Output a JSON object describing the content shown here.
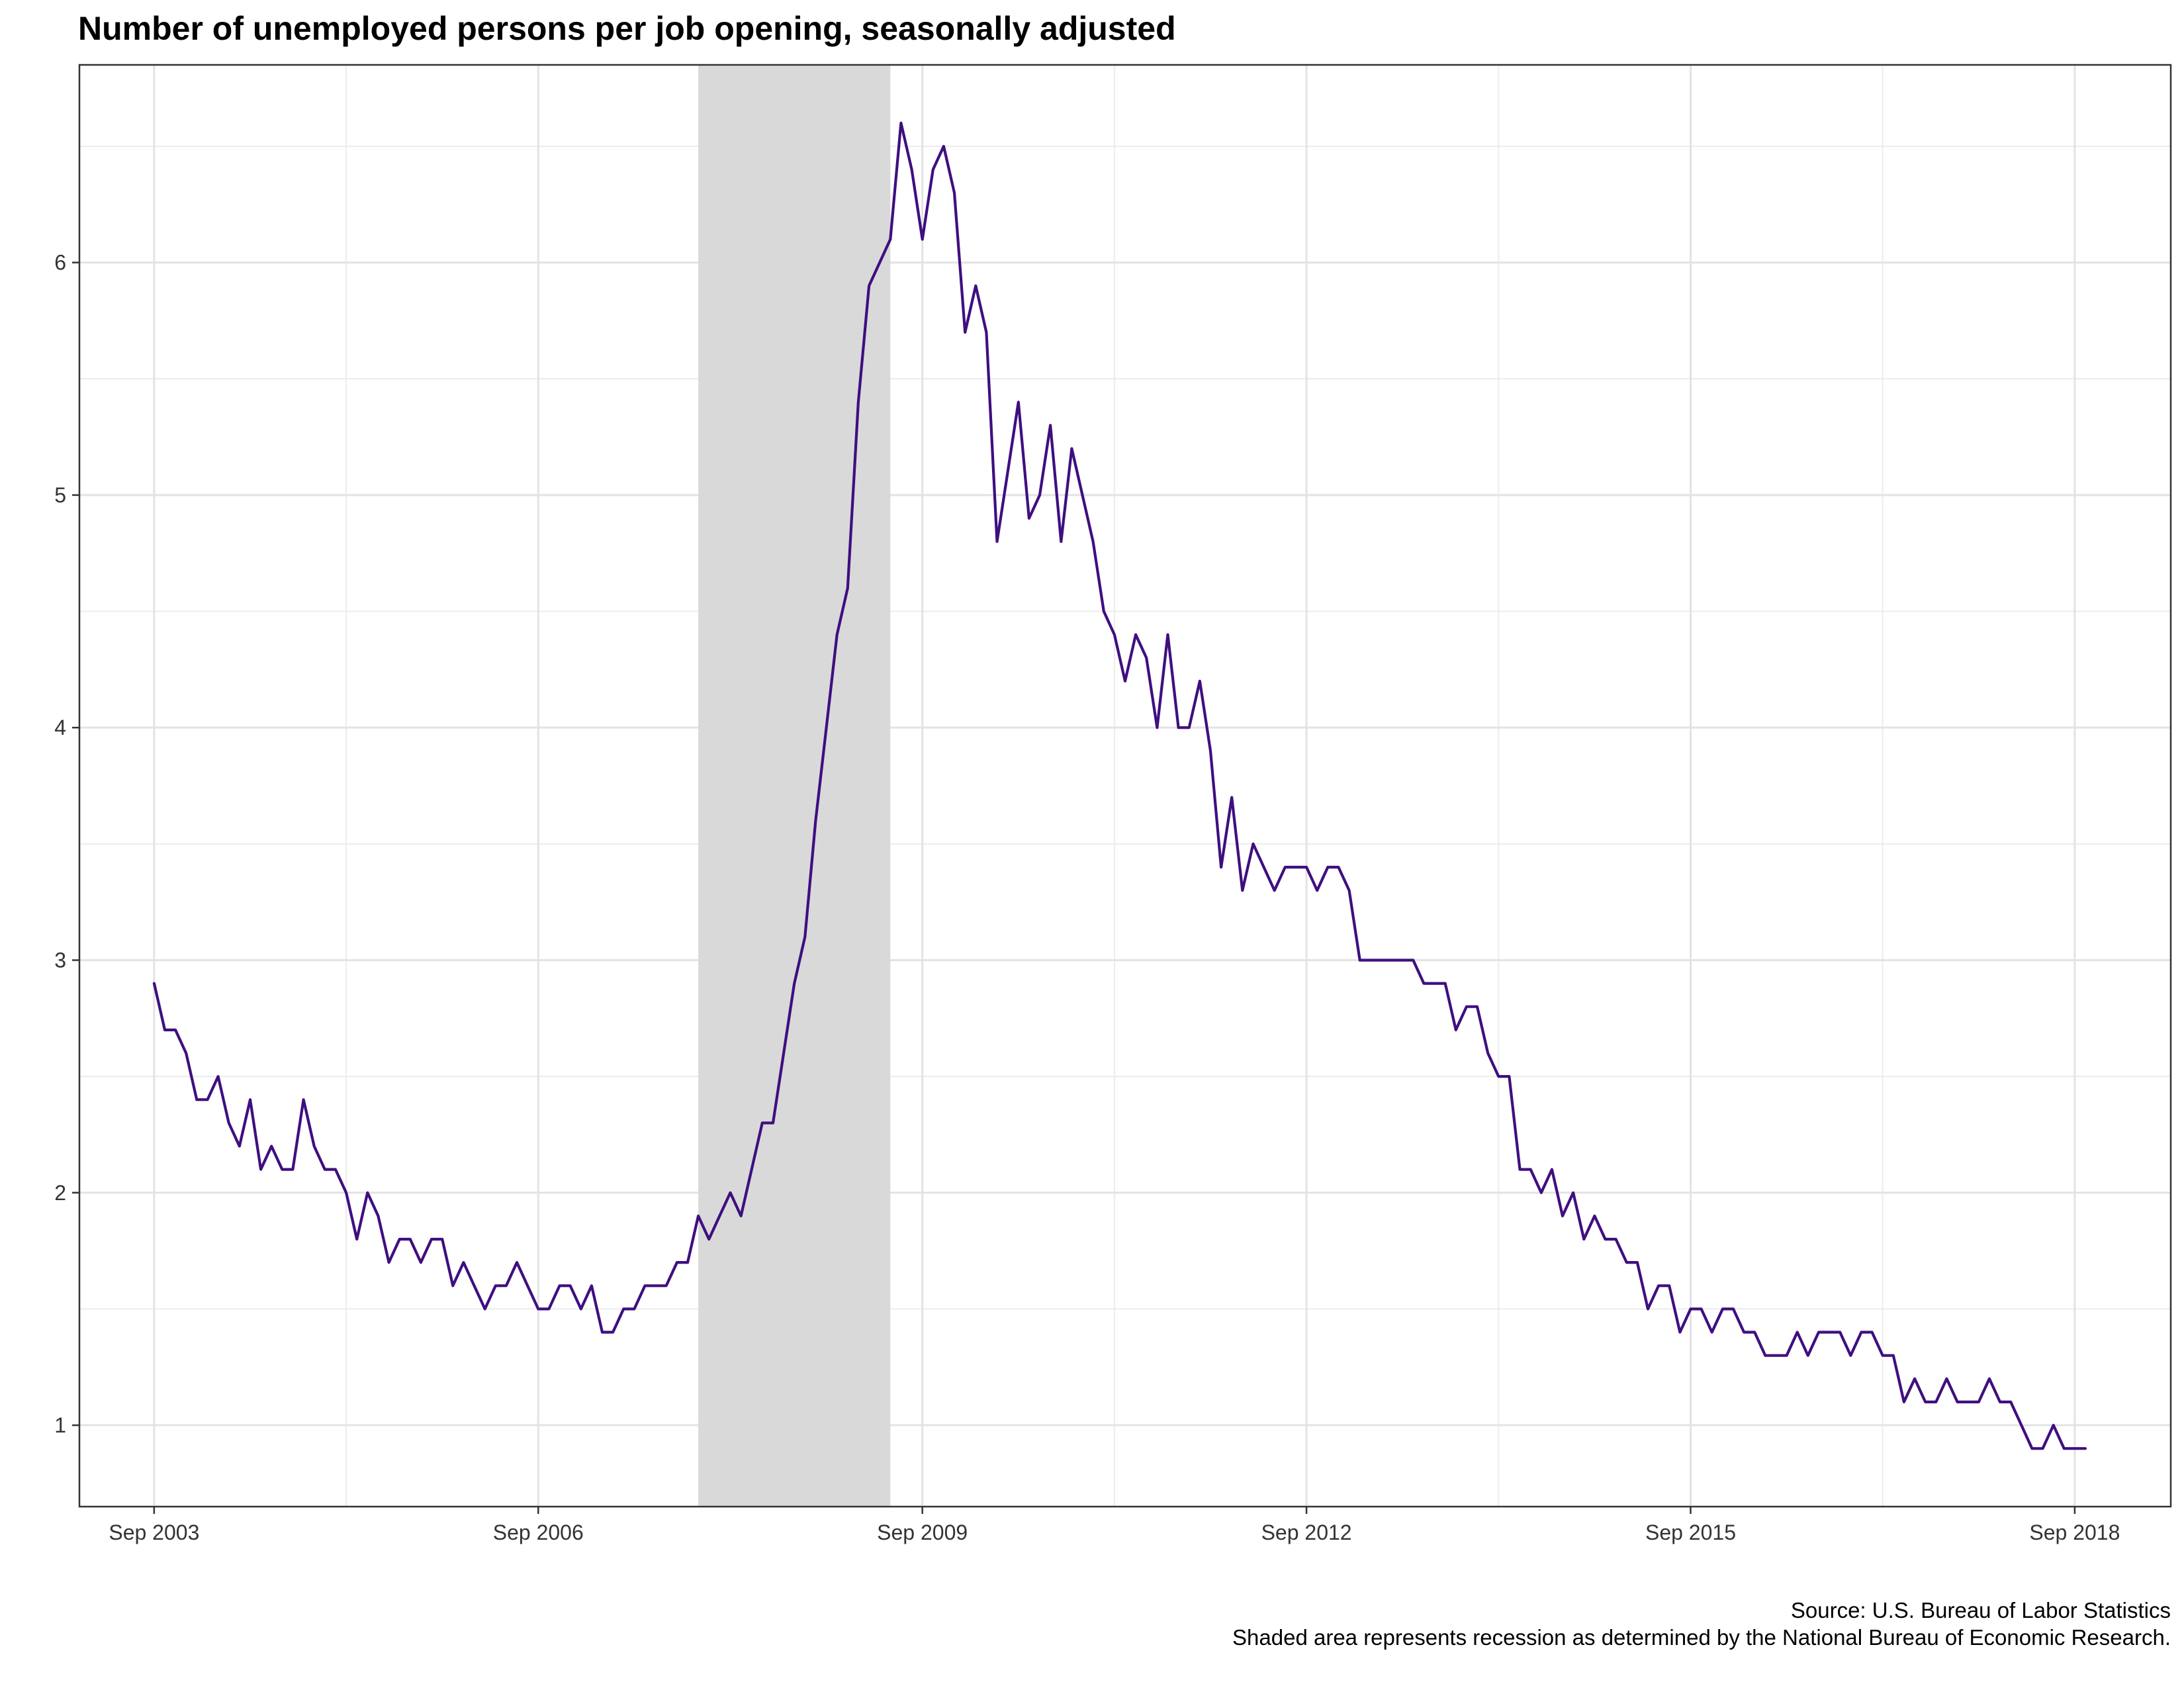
{
  "chart_data": {
    "type": "line",
    "title": "Number of unemployed persons per job opening, seasonally adjusted",
    "xlabel": "",
    "ylabel": "",
    "x_start": "2003-09",
    "x_end": "2018-09",
    "xlim": [
      "2003-02",
      "2019-06"
    ],
    "ylim": [
      0.65,
      6.85
    ],
    "x_ticks": [
      {
        "date": "2003-09",
        "label": "Sep 2003"
      },
      {
        "date": "2006-09",
        "label": "Sep 2006"
      },
      {
        "date": "2009-09",
        "label": "Sep 2009"
      },
      {
        "date": "2012-09",
        "label": "Sep 2012"
      },
      {
        "date": "2015-09",
        "label": "Sep 2015"
      },
      {
        "date": "2018-09",
        "label": "Sep 2018"
      }
    ],
    "x_minor_grid": [
      "2005-03",
      "2008-03",
      "2011-03",
      "2014-03",
      "2017-03"
    ],
    "y_ticks": [
      1,
      2,
      3,
      4,
      5,
      6
    ],
    "y_minor_grid": [
      1.5,
      2.5,
      3.5,
      4.5,
      5.5,
      6.5
    ],
    "grid": true,
    "legend": "none",
    "recession": {
      "start": "2007-12",
      "end": "2009-06",
      "color": "#d9d9d9"
    },
    "series": [
      {
        "color": "#3f0f80",
        "values": [
          2.9,
          2.7,
          2.7,
          2.6,
          2.4,
          2.4,
          2.5,
          2.3,
          2.2,
          2.4,
          2.1,
          2.2,
          2.1,
          2.1,
          2.4,
          2.2,
          2.1,
          2.1,
          2.0,
          1.8,
          2.0,
          1.9,
          1.7,
          1.8,
          1.8,
          1.7,
          1.8,
          1.8,
          1.6,
          1.7,
          1.6,
          1.5,
          1.6,
          1.6,
          1.7,
          1.6,
          1.5,
          1.5,
          1.6,
          1.6,
          1.5,
          1.6,
          1.4,
          1.4,
          1.5,
          1.5,
          1.6,
          1.6,
          1.6,
          1.7,
          1.7,
          1.9,
          1.8,
          1.9,
          2.0,
          1.9,
          2.1,
          2.3,
          2.3,
          2.6,
          2.9,
          3.1,
          3.6,
          4.0,
          4.4,
          4.6,
          5.4,
          5.9,
          6.0,
          6.1,
          6.6,
          6.4,
          6.1,
          6.4,
          6.5,
          6.3,
          5.7,
          5.9,
          5.7,
          4.8,
          5.1,
          5.4,
          4.9,
          5.0,
          5.3,
          4.8,
          5.2,
          5.0,
          4.8,
          4.5,
          4.4,
          4.2,
          4.4,
          4.3,
          4.0,
          4.4,
          4.0,
          4.0,
          4.2,
          3.9,
          3.4,
          3.7,
          3.3,
          3.5,
          3.4,
          3.3,
          3.4,
          3.4,
          3.4,
          3.3,
          3.4,
          3.4,
          3.3,
          3.0,
          3.0,
          3.0,
          3.0,
          3.0,
          3.0,
          2.9,
          2.9,
          2.9,
          2.7,
          2.8,
          2.8,
          2.6,
          2.5,
          2.5,
          2.1,
          2.1,
          2.0,
          2.1,
          1.9,
          2.0,
          1.8,
          1.9,
          1.8,
          1.8,
          1.7,
          1.7,
          1.5,
          1.6,
          1.6,
          1.4,
          1.5,
          1.5,
          1.4,
          1.5,
          1.5,
          1.4,
          1.4,
          1.3,
          1.3,
          1.3,
          1.4,
          1.3,
          1.4,
          1.4,
          1.4,
          1.3,
          1.4,
          1.4,
          1.3,
          1.3,
          1.1,
          1.2,
          1.1,
          1.1,
          1.2,
          1.1,
          1.1,
          1.1,
          1.2,
          1.1,
          1.1,
          1.0,
          0.9,
          0.9,
          1.0,
          0.9,
          0.9,
          0.9
        ]
      }
    ]
  },
  "caption": {
    "source": "Source: U.S. Bureau of Labor Statistics",
    "note": "Shaded area represents recession as determined by the National Bureau of Economic Research."
  }
}
